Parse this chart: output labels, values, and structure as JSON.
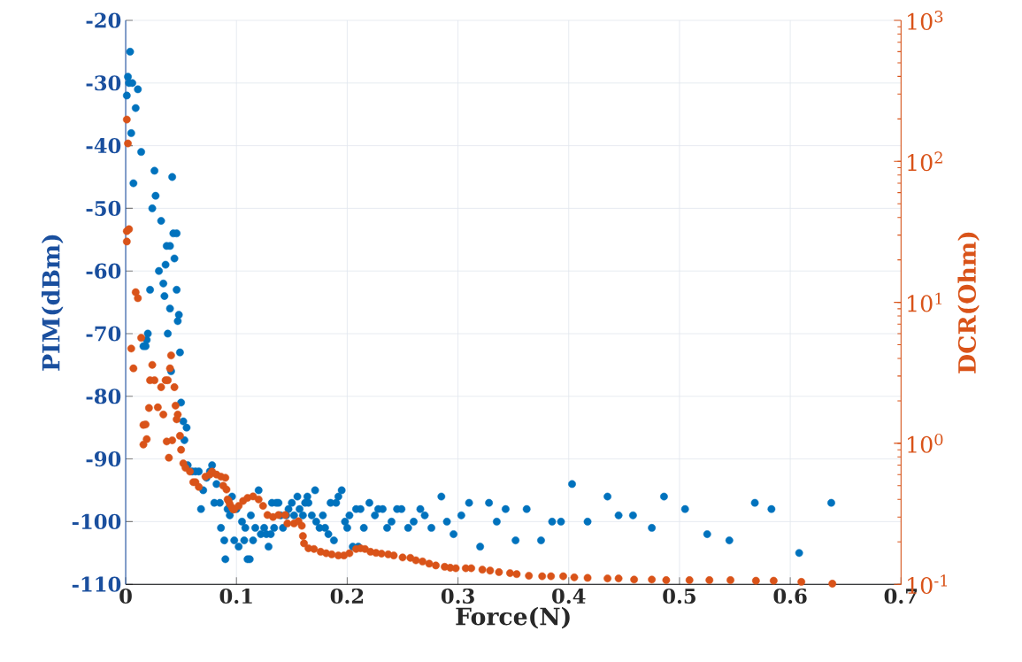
{
  "chart_data": {
    "type": "scatter",
    "xlabel": "Force(N)",
    "ylabel": "PIM(dBm)",
    "y2label": "DCR(Ohm)",
    "xlim": [
      0,
      0.7
    ],
    "xticks": [
      0,
      0.1,
      0.2,
      0.3,
      0.4,
      0.5,
      0.6,
      0.7
    ],
    "ylim": [
      -110,
      -20
    ],
    "yticks": [
      -110,
      -100,
      -90,
      -80,
      -70,
      -60,
      -50,
      -40,
      -30,
      -20
    ],
    "y2lim": [
      0.1,
      1000
    ],
    "y2ticks": [
      {
        "value": 0.1,
        "label": "10$^{-1}$"
      },
      {
        "value": 1,
        "label": "10$^{0}$"
      },
      {
        "value": 10,
        "label": "10$^{1}$"
      },
      {
        "value": 100,
        "label": "10$^{2}$"
      },
      {
        "value": 1000,
        "label": "10$^{3}$"
      }
    ],
    "log": "y2",
    "grid": true,
    "marker": "circle",
    "series": [
      {
        "color": "#0072bd",
        "x": [
          0.002,
          0.004,
          0.001,
          0.003,
          0.006,
          0.005,
          0.009,
          0.011,
          0.007,
          0.014,
          0.02,
          0.018,
          0.016,
          0.019,
          0.022,
          0.024,
          0.026,
          0.027,
          0.03,
          0.032,
          0.034,
          0.035,
          0.036,
          0.037,
          0.038,
          0.04,
          0.041,
          0.042,
          0.04,
          0.043,
          0.044,
          0.046,
          0.046,
          0.047,
          0.048,
          0.049,
          0.05,
          0.052,
          0.053,
          0.055,
          0.056,
          0.06,
          0.063,
          0.066,
          0.068,
          0.07,
          0.073,
          0.076,
          0.078,
          0.08,
          0.082,
          0.085,
          0.086,
          0.089,
          0.09,
          0.092,
          0.094,
          0.096,
          0.098,
          0.1,
          0.102,
          0.105,
          0.107,
          0.108,
          0.11,
          0.112,
          0.113,
          0.115,
          0.117,
          0.12,
          0.122,
          0.125,
          0.127,
          0.129,
          0.131,
          0.132,
          0.134,
          0.136,
          0.138,
          0.14,
          0.142,
          0.145,
          0.147,
          0.15,
          0.152,
          0.155,
          0.157,
          0.16,
          0.162,
          0.164,
          0.165,
          0.168,
          0.171,
          0.172,
          0.175,
          0.178,
          0.18,
          0.183,
          0.185,
          0.188,
          0.19,
          0.192,
          0.195,
          0.198,
          0.2,
          0.202,
          0.205,
          0.208,
          0.21,
          0.212,
          0.215,
          0.22,
          0.225,
          0.228,
          0.232,
          0.236,
          0.24,
          0.245,
          0.249,
          0.255,
          0.26,
          0.266,
          0.27,
          0.276,
          0.285,
          0.29,
          0.296,
          0.303,
          0.31,
          0.32,
          0.328,
          0.335,
          0.343,
          0.352,
          0.362,
          0.375,
          0.385,
          0.393,
          0.403,
          0.417,
          0.435,
          0.445,
          0.458,
          0.475,
          0.486,
          0.505,
          0.525,
          0.545,
          0.568,
          0.583,
          0.608,
          0.637
        ],
        "values": [
          -29,
          -25,
          -32,
          -30,
          -30,
          -38,
          -34,
          -31,
          -46,
          -41,
          -70,
          -72,
          -72,
          -71,
          -63,
          -50,
          -44,
          -48,
          -60,
          -52,
          -62,
          -64,
          -59,
          -56,
          -70,
          -56,
          -76,
          -45,
          -66,
          -54,
          -58,
          -54,
          -63,
          -68,
          -67,
          -73,
          -81,
          -84,
          -87,
          -85,
          -91,
          -92,
          -92,
          -92,
          -98,
          -95,
          -93,
          -92,
          -91,
          -97,
          -94,
          -97,
          -101,
          -103,
          -106,
          -98,
          -99,
          -96,
          -103,
          -98,
          -104,
          -100,
          -103,
          -101,
          -106,
          -106,
          -99,
          -103,
          -101,
          -95,
          -102,
          -101,
          -102,
          -104,
          -102,
          -97,
          -101,
          -97,
          -97,
          -99,
          -101,
          -99,
          -98,
          -97,
          -99,
          -96,
          -98,
          -99,
          -97,
          -96,
          -97,
          -99,
          -95,
          -100,
          -101,
          -99,
          -101,
          -102,
          -97,
          -103,
          -97,
          -96,
          -95,
          -100,
          -101,
          -99,
          -104,
          -98,
          -104,
          -98,
          -101,
          -97,
          -99,
          -98,
          -98,
          -101,
          -100,
          -98,
          -98,
          -101,
          -100,
          -98,
          -99,
          -101,
          -96,
          -100,
          -102,
          -99,
          -97,
          -104,
          -97,
          -100,
          -98,
          -103,
          -98,
          -103,
          -100,
          -100,
          -94,
          -100,
          -96,
          -99,
          -99,
          -101,
          -96,
          -98,
          -102,
          -103,
          -97,
          -98,
          -105,
          -97
        ]
      },
      {
        "color": "#d95319",
        "axis": "y2",
        "x": [
          0.001,
          0.002,
          0.001,
          0.003,
          0.001,
          0.009,
          0.011,
          0.014,
          0.005,
          0.007,
          0.024,
          0.041,
          0.04,
          0.022,
          0.026,
          0.032,
          0.036,
          0.038,
          0.044,
          0.021,
          0.029,
          0.034,
          0.045,
          0.047,
          0.046,
          0.016,
          0.018,
          0.019,
          0.016,
          0.037,
          0.042,
          0.049,
          0.039,
          0.05,
          0.052,
          0.054,
          0.058,
          0.061,
          0.063,
          0.066,
          0.072,
          0.076,
          0.078,
          0.082,
          0.086,
          0.088,
          0.09,
          0.091,
          0.092,
          0.093,
          0.094,
          0.096,
          0.097,
          0.098,
          0.102,
          0.106,
          0.11,
          0.115,
          0.12,
          0.124,
          0.128,
          0.133,
          0.138,
          0.144,
          0.146,
          0.152,
          0.156,
          0.159,
          0.16,
          0.161,
          0.165,
          0.17,
          0.176,
          0.181,
          0.186,
          0.192,
          0.197,
          0.202,
          0.208,
          0.212,
          0.216,
          0.221,
          0.226,
          0.231,
          0.237,
          0.242,
          0.25,
          0.257,
          0.262,
          0.268,
          0.274,
          0.28,
          0.288,
          0.293,
          0.298,
          0.307,
          0.312,
          0.322,
          0.329,
          0.337,
          0.347,
          0.353,
          0.364,
          0.376,
          0.384,
          0.395,
          0.405,
          0.417,
          0.435,
          0.445,
          0.459,
          0.475,
          0.488,
          0.509,
          0.527,
          0.546,
          0.569,
          0.585,
          0.61,
          0.638
        ],
        "values": [
          198,
          134,
          32,
          33,
          27,
          11.8,
          10.7,
          5.6,
          4.7,
          3.4,
          3.6,
          4.2,
          3.4,
          2.8,
          2.8,
          2.5,
          2.8,
          2.8,
          2.5,
          1.78,
          1.8,
          1.6,
          1.85,
          1.6,
          1.48,
          1.35,
          1.36,
          1.07,
          0.98,
          1.03,
          1.05,
          1.13,
          0.79,
          0.9,
          0.72,
          0.67,
          0.63,
          0.53,
          0.53,
          0.49,
          0.58,
          0.6,
          0.63,
          0.6,
          0.58,
          0.5,
          0.57,
          0.47,
          0.4,
          0.39,
          0.37,
          0.35,
          0.34,
          0.34,
          0.36,
          0.39,
          0.41,
          0.42,
          0.4,
          0.36,
          0.31,
          0.3,
          0.31,
          0.31,
          0.27,
          0.27,
          0.28,
          0.26,
          0.22,
          0.195,
          0.18,
          0.178,
          0.17,
          0.166,
          0.163,
          0.16,
          0.16,
          0.166,
          0.178,
          0.18,
          0.178,
          0.17,
          0.167,
          0.165,
          0.163,
          0.16,
          0.155,
          0.154,
          0.148,
          0.145,
          0.14,
          0.136,
          0.133,
          0.131,
          0.13,
          0.13,
          0.13,
          0.127,
          0.125,
          0.122,
          0.12,
          0.118,
          0.115,
          0.114,
          0.114,
          0.114,
          0.112,
          0.111,
          0.11,
          0.11,
          0.108,
          0.108,
          0.107,
          0.107,
          0.107,
          0.107,
          0.106,
          0.106,
          0.104,
          0.101
        ]
      }
    ]
  }
}
